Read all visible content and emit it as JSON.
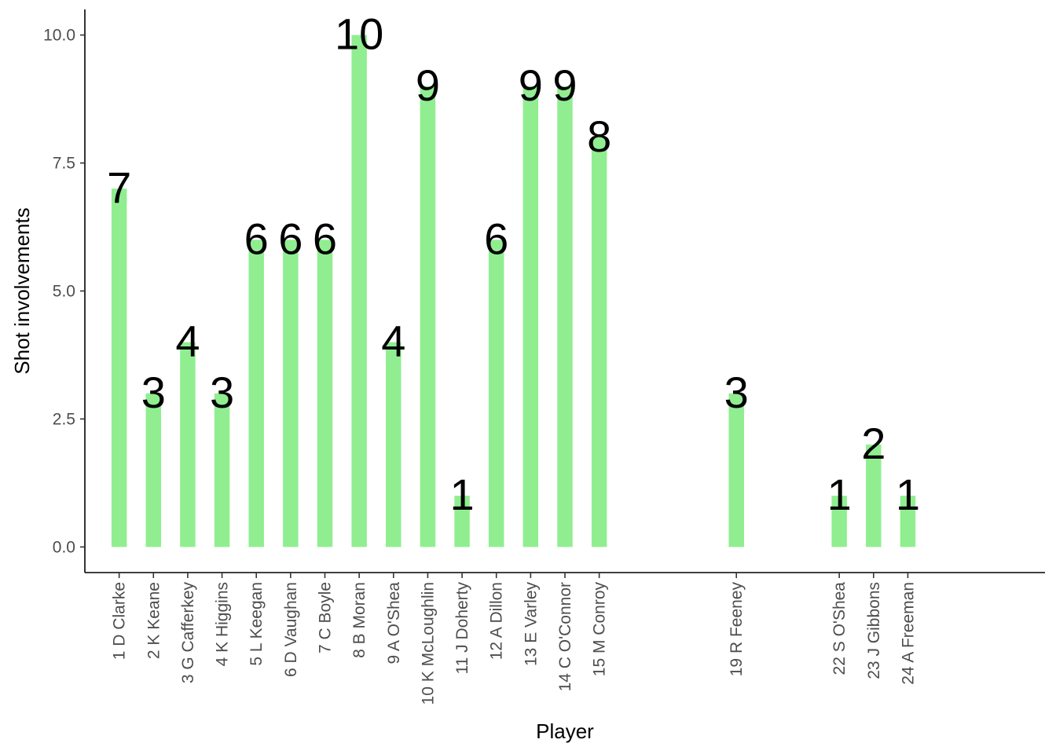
{
  "chart_data": {
    "type": "bar",
    "title": "",
    "xlabel": "Player",
    "ylabel": "Shot involvements",
    "ylim": [
      -0.5,
      10.5
    ],
    "yticks": [
      0.0,
      2.5,
      5.0,
      7.5,
      10.0
    ],
    "ytick_labels": [
      "0.0",
      "2.5",
      "5.0",
      "7.5",
      "10.0"
    ],
    "bar_color": "#90EE90",
    "grid": false,
    "categories": [
      "1 D Clarke",
      "2 K Keane",
      "3 G Cafferkey",
      "4 K Higgins",
      "5 L Keegan",
      "6 D Vaughan",
      "7 C Boyle",
      "8 B Moran",
      "9 A O'Shea",
      "10 K McLoughlin",
      "11 J Doherty",
      "12 A Dillon",
      "13 E Varley",
      "14 C O'Connor",
      "15 M Conroy",
      "19 R Feeney",
      "22 S O'Shea",
      "23 J Gibbons",
      "24 A Freeman"
    ],
    "positions": [
      1,
      2,
      3,
      4,
      5,
      6,
      7,
      8,
      9,
      10,
      11,
      12,
      13,
      14,
      15,
      19,
      22,
      23,
      24
    ],
    "x_domain": [
      0,
      28
    ],
    "values": [
      7,
      3,
      4,
      3,
      6,
      6,
      6,
      10,
      4,
      9,
      1,
      6,
      9,
      9,
      8,
      3,
      1,
      2,
      1
    ]
  }
}
